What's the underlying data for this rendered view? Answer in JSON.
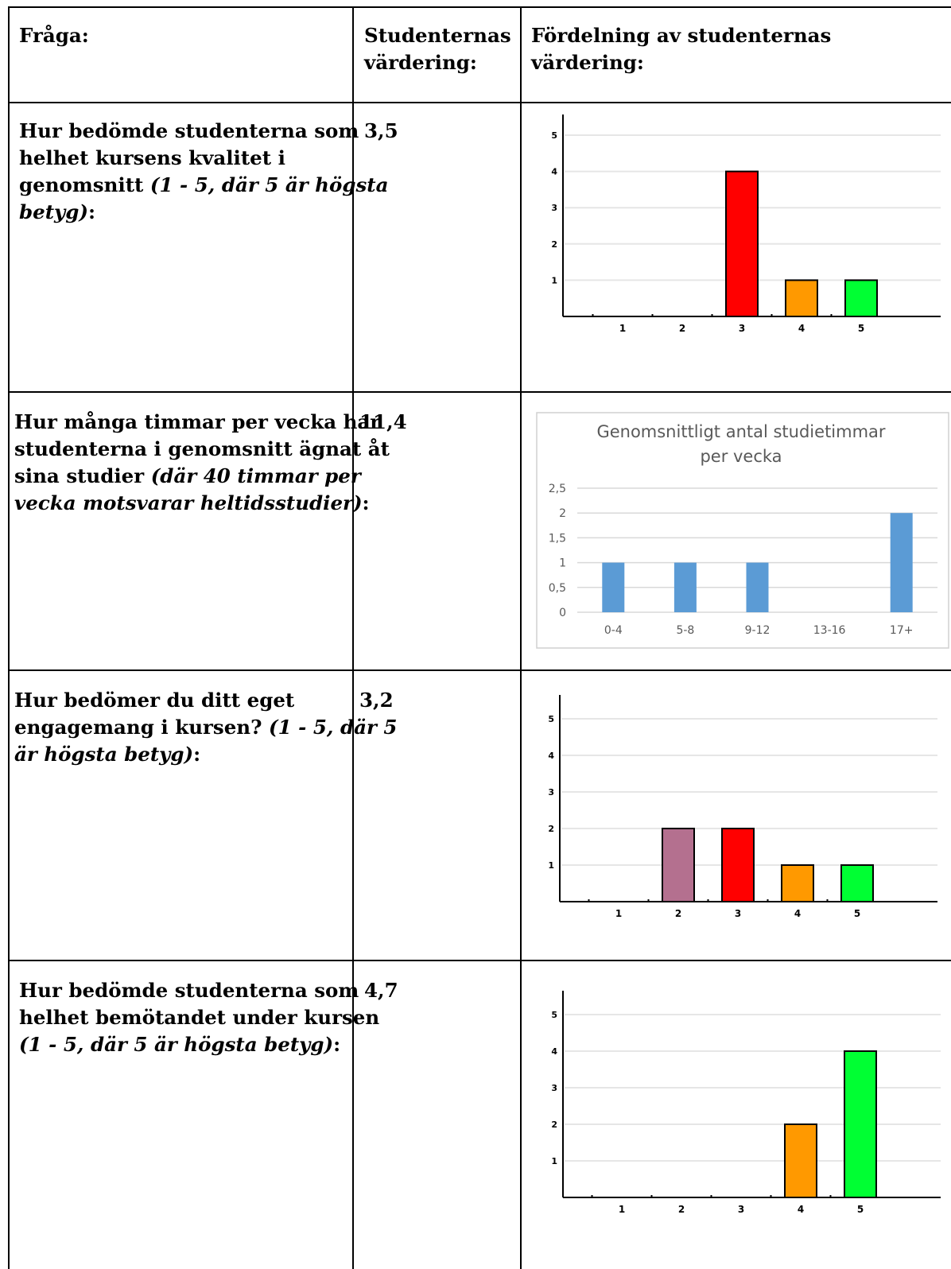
{
  "header": {
    "col1": "Fråga:",
    "col2_line1": "Studenternas",
    "col2_line2": "värdering:",
    "col3_line1": "Fördelning av studenternas",
    "col3_line2": "värdering:"
  },
  "rows": [
    {
      "q_line1": "Hur bedömde studenterna som",
      "q_line2": "helhet kursens kvalitet i",
      "q_line3_plain": "genomsnitt ",
      "q_line3_italic": "(1 - 5, där 5 är högsta",
      "q_line4_italic": "betyg)",
      "q_end": ":",
      "value": "3,5"
    },
    {
      "q_line1": "Hur många timmar per vecka har",
      "q_line2": "studenterna i genomsnitt ägnat åt",
      "q_line3_plain": "sina studier ",
      "q_line3_italic": "(där 40 timmar per",
      "q_line4_italic": "vecka motsvarar heltidsstudier)",
      "q_end": ":",
      "value": "11,4"
    },
    {
      "q_line1": "Hur bedömer du ditt eget",
      "q_line2_plain": "engagemang i kursen? ",
      "q_line2_italic": "(1 - 5, där 5",
      "q_line3_italic": "är högsta betyg)",
      "q_end": ":",
      "value": "3,2"
    },
    {
      "q_line1": "Hur bedömde studenterna som",
      "q_line2": "helhet bemötandet under kursen",
      "q_line3_italic": "(1 - 5, där 5 är högsta betyg)",
      "q_end": ":",
      "value": "4,7"
    }
  ],
  "chart_data": [
    {
      "type": "bar",
      "categories": [
        "1",
        "2",
        "3",
        "4",
        "5"
      ],
      "values": [
        0,
        0,
        4,
        1,
        1
      ],
      "colors": [
        "#b4708f",
        "#b4708f",
        "#ff0000",
        "#ff9900",
        "#00ff33"
      ],
      "yticks": [
        "1",
        "2",
        "3",
        "4",
        "5"
      ],
      "ylim": [
        0,
        5
      ]
    },
    {
      "type": "bar",
      "title_line1": "Genomsnittligt antal studietimmar",
      "title_line2": "per vecka",
      "categories": [
        "0-4",
        "5-8",
        "9-12",
        "13-16",
        "17+"
      ],
      "values": [
        1,
        1,
        1,
        0,
        2
      ],
      "color": "#5b9bd5",
      "yticks": [
        "0",
        "0,5",
        "1",
        "1,5",
        "2",
        "2,5"
      ],
      "ylim": [
        0,
        2.5
      ]
    },
    {
      "type": "bar",
      "categories": [
        "1",
        "2",
        "3",
        "4",
        "5"
      ],
      "values": [
        0,
        2,
        2,
        1,
        1
      ],
      "colors": [
        "#b4708f",
        "#b4708f",
        "#ff0000",
        "#ff9900",
        "#00ff33"
      ],
      "yticks": [
        "1",
        "2",
        "3",
        "4",
        "5"
      ],
      "ylim": [
        0,
        5
      ]
    },
    {
      "type": "bar",
      "categories": [
        "1",
        "2",
        "3",
        "4",
        "5"
      ],
      "values": [
        0,
        0,
        0,
        2,
        4
      ],
      "colors": [
        "#b4708f",
        "#b4708f",
        "#ff0000",
        "#ff9900",
        "#00ff33"
      ],
      "yticks": [
        "1",
        "2",
        "3",
        "4",
        "5"
      ],
      "ylim": [
        0,
        5
      ]
    }
  ]
}
